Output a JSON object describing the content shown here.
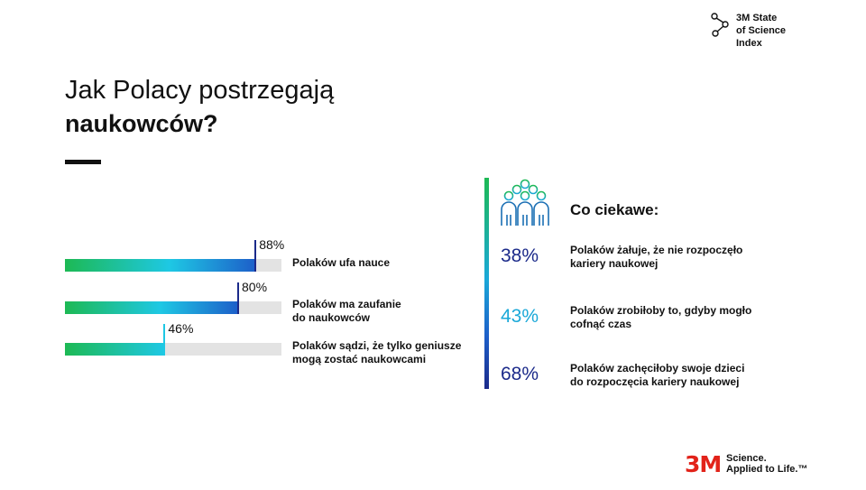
{
  "badge": {
    "text": "3M State\nof Science\nIndex"
  },
  "title": {
    "line1": "Jak Polacy postrzegają",
    "line2": "naukowców?"
  },
  "colors": {
    "green": "#1db954",
    "cyan": "#1ec8e4",
    "blue": "#1d5fc9",
    "navy": "#1b2a8a",
    "track": "#e3e3e3",
    "brand_red": "#e2231a"
  },
  "chart_data": {
    "type": "bar",
    "orientation": "horizontal",
    "categories": [
      "Polaków ufa nauce",
      "Polaków ma zaufanie do naukowców",
      "Polaków sądzi, że tylko geniusze mogą zostać naukowcami"
    ],
    "values": [
      88,
      80,
      46
    ],
    "value_labels": [
      "88%",
      "80%",
      "46%"
    ],
    "xlim": [
      0,
      100
    ],
    "grid": false,
    "legend": "none"
  },
  "bars": [
    {
      "pct": "88%",
      "label": "Polaków ufa nauce"
    },
    {
      "pct": "80%",
      "label": "Polaków ma zaufanie\ndo naukowców"
    },
    {
      "pct": "46%",
      "label": "Polaków sądzi, że tylko geniusze\nmogą zostać naukowcami"
    }
  ],
  "panel": {
    "title": "Co ciekawe:",
    "icon": "people-group-icon",
    "stats": [
      {
        "value": "38%",
        "label": "Polaków żałuje, że nie rozpoczęło\nkariery naukowej",
        "color": "#1b2a8a"
      },
      {
        "value": "43%",
        "label": "Polaków zrobiłoby to, gdyby mogło\ncofnąć czas",
        "color": "#1aa8d8"
      },
      {
        "value": "68%",
        "label": "Polaków zachęciłoby swoje dzieci\ndo rozpoczęcia kariery naukowej",
        "color": "#1b2a8a"
      }
    ]
  },
  "brand": {
    "logo": "3M",
    "tagline": "Science.\nApplied to Life.™"
  }
}
